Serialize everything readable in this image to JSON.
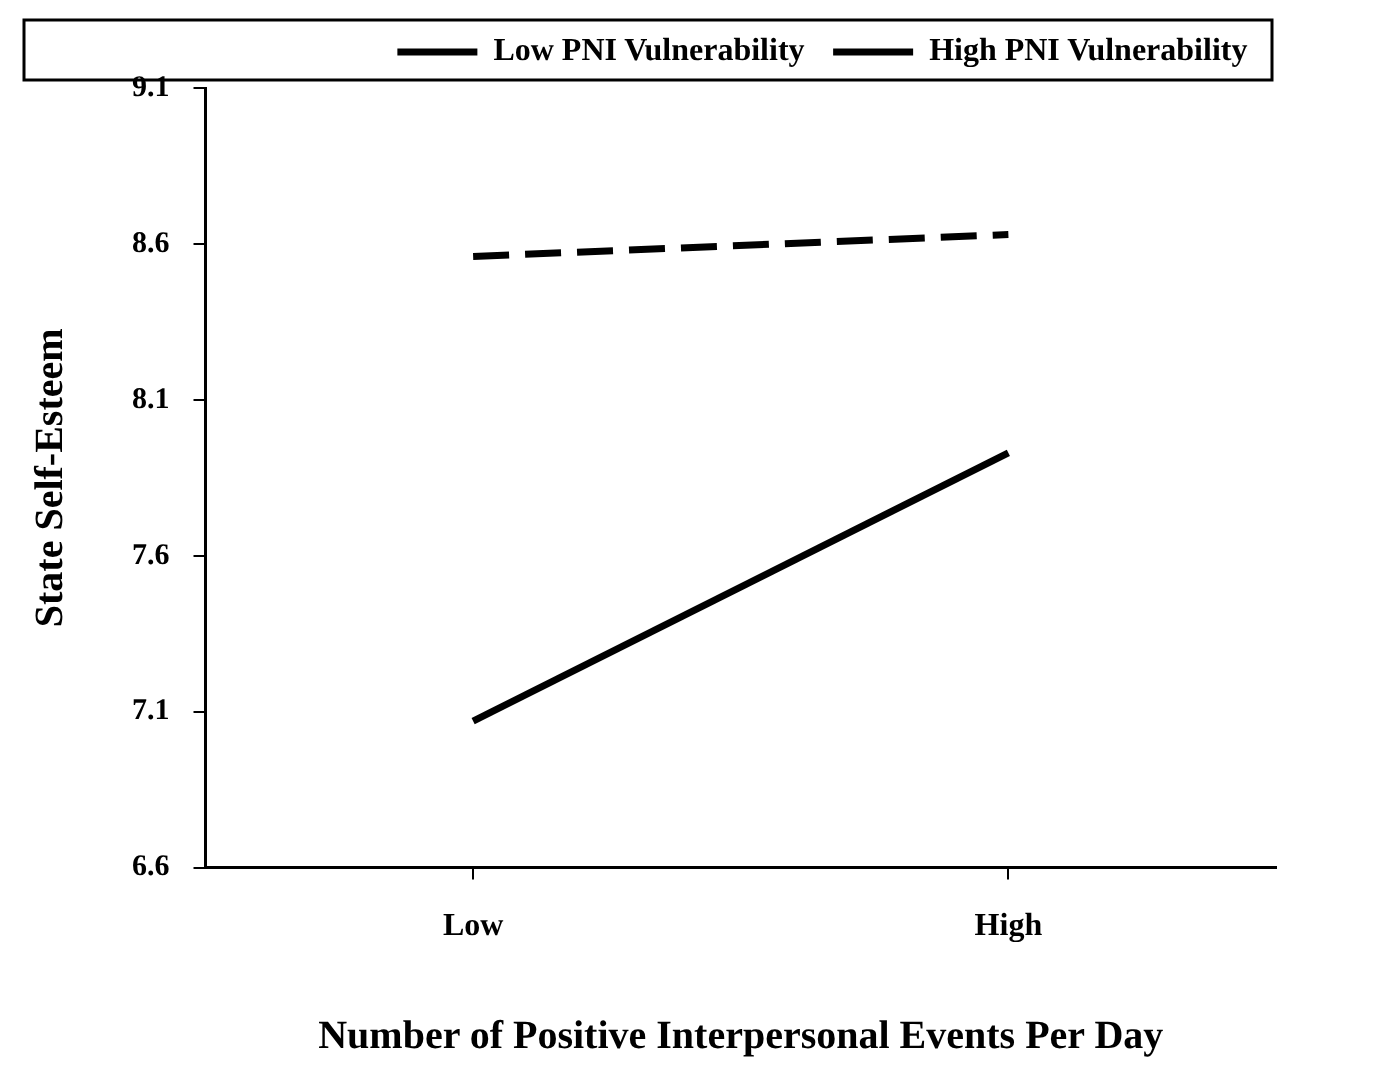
{
  "chart_data": {
    "type": "line",
    "xlabel": "Number of Positive Interpersonal Events Per Day",
    "ylabel": "State Self-Esteem",
    "categories": [
      "Low",
      "High"
    ],
    "series": [
      {
        "name": "Low PNI Vulnerability",
        "color": "#000000",
        "line_style": "dashed",
        "values": [
          8.56,
          8.63
        ]
      },
      {
        "name": "High PNI Vulnerability",
        "color": "#000000",
        "line_style": "solid",
        "values": [
          7.07,
          7.93
        ]
      }
    ],
    "ylim": [
      6.6,
      9.1
    ],
    "yticks": [
      6.6,
      7.1,
      7.6,
      8.1,
      8.6,
      9.1
    ],
    "grid": false,
    "legend": "top",
    "marker": "none"
  }
}
